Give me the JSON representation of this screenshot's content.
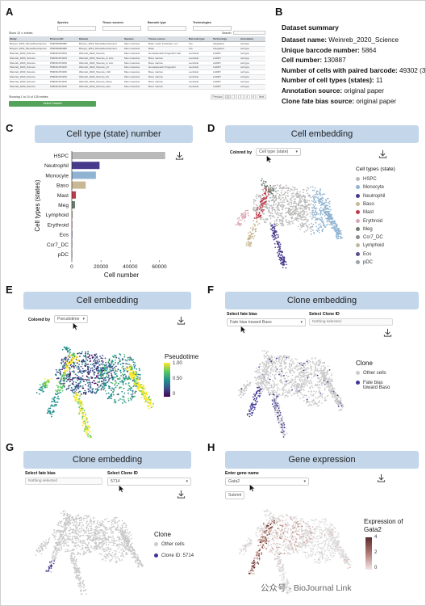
{
  "panels": {
    "a": "A",
    "b": "B",
    "c": "C",
    "d": "D",
    "e": "E",
    "f": "F",
    "g": "G",
    "h": "H"
  },
  "panelA": {
    "filters": [
      {
        "label": "Species",
        "value": ""
      },
      {
        "label": "Tissue sources",
        "value": ""
      },
      {
        "label": "Barcode type",
        "value": ""
      },
      {
        "label": "Technologies",
        "value": ""
      }
    ],
    "show_entries": "Show 10 ∨ entries",
    "search_label": "Search:",
    "columns": [
      "Study",
      "Protocol ID",
      "Dataset",
      "Species",
      "Tissue source",
      "Barcode type",
      "Technology",
      "Annotation"
    ],
    "rows": [
      [
        "Bowyer_2019_MouseDevelopmen",
        "PMID38395080",
        "Bowyer_2019_MouseDevelopment",
        "Mus musculus",
        "Brain, heart, Forebrain, Lim",
        "Cre",
        "Integrated",
        "cell type"
      ],
      [
        "Bowyer_2019_MouseDevelopmen",
        "PMID38395080",
        "Bowyer_2019_MouseDevelopment",
        "Mus musculus",
        "Brain",
        "Cre",
        "Integrated",
        "cell type"
      ],
      [
        "Weinreb_2020_Science",
        "PMID31974159",
        "Weinreb_2020_Science",
        "Mus musculus",
        "Hematopoietic Progenitor Cell",
        "Lentiviral",
        "LARRY",
        "cell type"
      ],
      [
        "Weinreb_2020_Science",
        "PMID31974159",
        "Weinreb_2020_Science_In vitro",
        "Mus musculus",
        "Bone marrow",
        "Lentiviral",
        "LARRY",
        "cell type"
      ],
      [
        "Weinreb_2020_Science",
        "PMID31974159",
        "Weinreb_2020_Science_In vivo",
        "Mus musculus",
        "Bone marrow",
        "Lentiviral",
        "LARRY",
        "cell type"
      ],
      [
        "Weinreb_2020_Science",
        "PMID31974159",
        "Weinreb_2020_Science_LK",
        "Mus musculus",
        "Hematopoietic Progenitor",
        "Lentiviral",
        "LARRY",
        "cell type"
      ],
      [
        "Weinreb_2020_Science",
        "PMID31974159",
        "Weinreb_2020_Science_LSK",
        "Mus musculus",
        "Bone marrow",
        "Lentiviral",
        "LARRY",
        "cell type"
      ],
      [
        "Weinreb_2020_Science",
        "PMID31974159",
        "Weinreb_2020_Science_Dn",
        "Mus musculus",
        "Bone marrow",
        "Lentiviral",
        "LARRY",
        "cell type"
      ],
      [
        "Weinreb_2020_Science",
        "PMID31974159",
        "Weinreb_2020_Science_Mono",
        "Mus musculus",
        "Bone marrow",
        "Lentiviral",
        "LARRY",
        "cell type"
      ],
      [
        "Weinreb_2020_Science",
        "PMID31974159",
        "Weinreb_2020_Science_Neu",
        "Mus musculus",
        "Bone marrow",
        "Lentiviral",
        "LARRY",
        "cell type"
      ]
    ],
    "footer": "Showing 1 to 10 of 135 entries",
    "pagination": [
      "Previous",
      "1",
      "2",
      "3",
      "4",
      "5",
      "Next"
    ],
    "select_button": "Select Dataset"
  },
  "panelB": {
    "title": "Dataset summary",
    "items": [
      {
        "label": "Dataset name:",
        "value": "Weinreb_2020_Science"
      },
      {
        "label": "Unique barcode number:",
        "value": "5864"
      },
      {
        "label": "Cell number:",
        "value": "130887"
      },
      {
        "label": "Number of cells with paired barcode:",
        "value": "49302 (37.67%)"
      },
      {
        "label": "Number of cell types (states):",
        "value": "11"
      },
      {
        "label": "Annotation source:",
        "value": "original paper"
      },
      {
        "label": "Clone fate bias source:",
        "value": "original paper"
      }
    ]
  },
  "panelC": {
    "title": "Cell type (state) number"
  },
  "chart_data": {
    "type": "bar",
    "orientation": "horizontal",
    "categories": [
      "HSPC",
      "Neutrophil",
      "Monocyte",
      "Baso",
      "Mast",
      "Meg",
      "Lymphoid",
      "Erythroid",
      "Eos",
      "Ccr7_DC",
      "pDC"
    ],
    "values": [
      64000,
      19000,
      16500,
      9500,
      2800,
      2200,
      700,
      500,
      350,
      200,
      120
    ],
    "colors": [
      "#b9b9b9",
      "#473a8c",
      "#8fb3d1",
      "#c8b893",
      "#c0394b",
      "#6c7c6e",
      "#c2b89c",
      "#d9a8b3",
      "#5a4f8f",
      "#8a8f94",
      "#9aa3aa"
    ],
    "xlabel": "Cell number",
    "ylabel": "Cell types (states)",
    "xticks": [
      0,
      20000,
      40000,
      60000
    ],
    "xlim": [
      0,
      68000
    ]
  },
  "panelD": {
    "title": "Cell embedding",
    "colored_by_label": "Colored by",
    "colored_by_value": "Cell type (state)",
    "legend_title": "Cell types (state)",
    "legend": [
      {
        "name": "HSPC",
        "color": "#b9b9b9"
      },
      {
        "name": "Monocyte",
        "color": "#8fb3d1"
      },
      {
        "name": "Neutrophil",
        "color": "#473a8c"
      },
      {
        "name": "Baso",
        "color": "#c8b893"
      },
      {
        "name": "Mast",
        "color": "#c0394b"
      },
      {
        "name": "Erythroid",
        "color": "#d9a8b3"
      },
      {
        "name": "Meg",
        "color": "#6c7c6e"
      },
      {
        "name": "Ccr7_DC",
        "color": "#8a8f94"
      },
      {
        "name": "Lymphoid",
        "color": "#c2b89c"
      },
      {
        "name": "Eos",
        "color": "#5a4f8f"
      },
      {
        "name": "pDC",
        "color": "#9aa3aa"
      }
    ]
  },
  "panelE": {
    "title": "Cell embedding",
    "colored_by_label": "Colored by",
    "colored_by_value": "Pseudotime",
    "legend_title": "Pseudotime",
    "legend_ticks": [
      "1.00",
      "0.50",
      "0"
    ]
  },
  "panelF": {
    "title": "Clone embedding",
    "fate_label": "Select fate bias",
    "fate_value": "Fate bias toward Baso",
    "clone_label": "Select Clone ID",
    "clone_value": "Nothing selected",
    "legend_title": "Clone",
    "legend": [
      {
        "name": "Other cells",
        "color": "#cccccc"
      },
      {
        "name": "Fate bias toward Baso",
        "color": "#3d3595"
      }
    ]
  },
  "panelG": {
    "title": "Clone embedding",
    "fate_label": "Select fate bias",
    "fate_value": "Nothing selected",
    "clone_label": "Select Clone ID",
    "clone_value": "5714",
    "legend_title": "Clone",
    "legend": [
      {
        "name": "Other cells",
        "color": "#cccccc"
      },
      {
        "name": "Clone ID: 5714",
        "color": "#3d3595"
      }
    ]
  },
  "panelH": {
    "title": "Gene expression",
    "gene_label": "Enter gene name",
    "gene_value": "Gata2",
    "submit": "Submit",
    "legend_title": "Expression of Gata2",
    "legend_ticks": [
      "4",
      "2",
      "0"
    ]
  },
  "watermark": "公众号 · BioJournal Link"
}
